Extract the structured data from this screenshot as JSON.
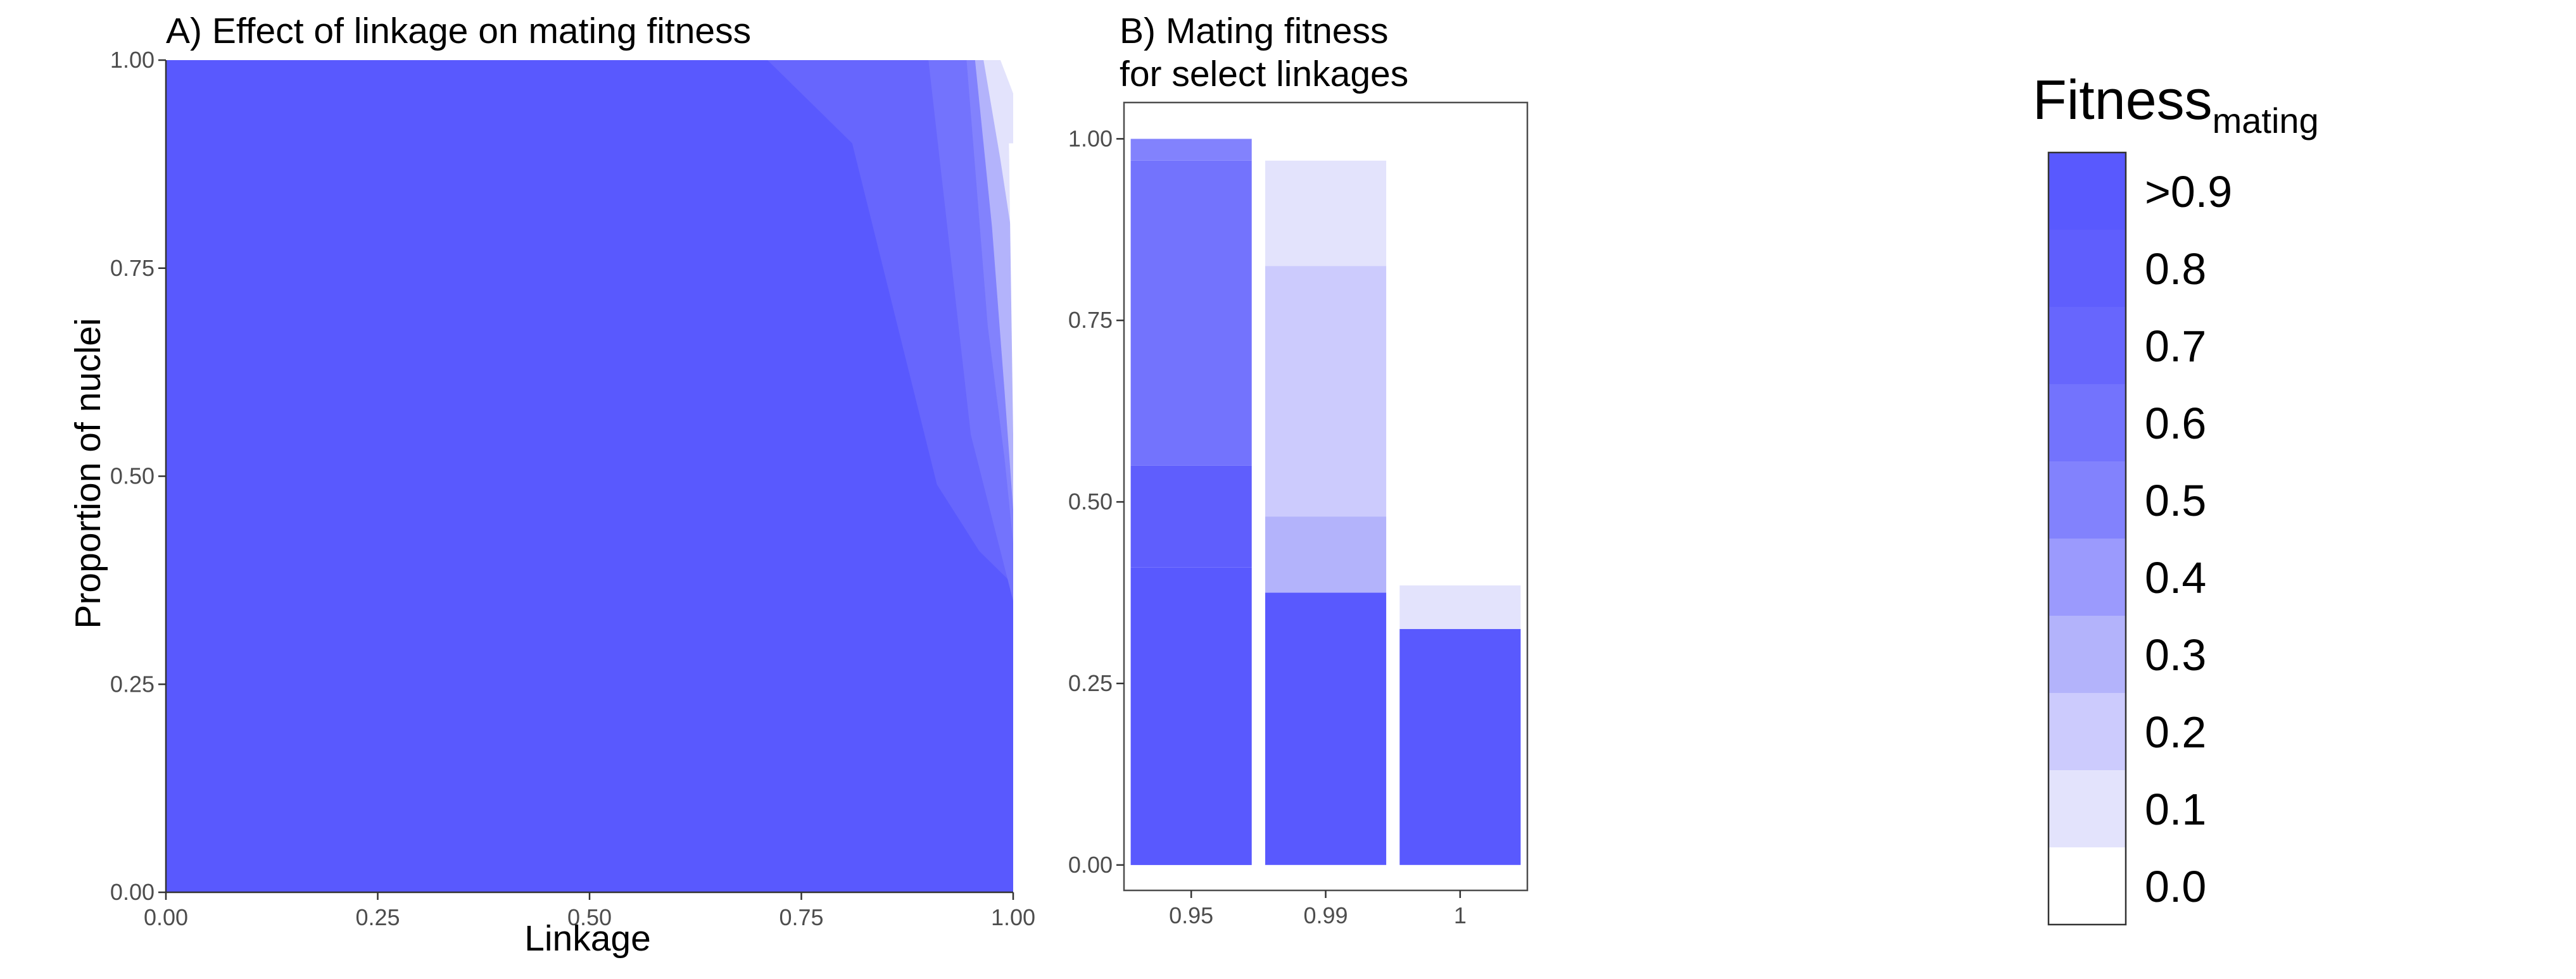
{
  "colors": {
    "palette": [
      "#ffffff",
      "#e3e3fc",
      "#cccbfd",
      "#b3b3fb",
      "#9b9afd",
      "#8282fd",
      "#7373fd",
      "#6766fd",
      "#5f5efd",
      "#5959fe"
    ],
    "axis": "#333333",
    "frame": "#4d4d4d"
  },
  "chart_data": [
    {
      "type": "area",
      "title": "A) Effect of linkage on mating fitness",
      "xlabel": "Linkage",
      "ylabel": "Proportion of nuclei",
      "xlim": [
        0,
        1
      ],
      "ylim": [
        0,
        1
      ],
      "xticks": [
        "0.00",
        "0.25",
        "0.50",
        "0.75",
        "1.00"
      ],
      "yticks": [
        "0.00",
        "0.25",
        "0.50",
        "0.75",
        "1.00"
      ],
      "grid": false,
      "background_level": 9,
      "regions": [
        {
          "level": 7,
          "points": [
            [
              0.71,
              1.0
            ],
            [
              0.81,
              0.9
            ],
            [
              0.91,
              0.49
            ],
            [
              0.96,
              0.41
            ],
            [
              1.0,
              0.37
            ],
            [
              1.0,
              1.0
            ]
          ]
        },
        {
          "level": 6,
          "points": [
            [
              0.9,
              1.0
            ],
            [
              0.95,
              0.55
            ],
            [
              0.975,
              0.45
            ],
            [
              1.0,
              0.35
            ],
            [
              1.0,
              1.0
            ]
          ]
        },
        {
          "level": 5,
          "points": [
            [
              0.945,
              1.0
            ],
            [
              0.97,
              0.68
            ],
            [
              0.99,
              0.52
            ],
            [
              1.0,
              0.42
            ],
            [
              1.0,
              1.0
            ]
          ]
        },
        {
          "level": 3,
          "points": [
            [
              0.955,
              1.0
            ],
            [
              0.975,
              0.8
            ],
            [
              0.99,
              0.6
            ],
            [
              1.0,
              0.46
            ],
            [
              1.0,
              1.0
            ]
          ]
        },
        {
          "level": 1,
          "points": [
            [
              0.965,
              1.0
            ],
            [
              0.985,
              0.88
            ],
            [
              1.0,
              0.78
            ],
            [
              1.0,
              1.0
            ]
          ]
        },
        {
          "level": 0,
          "points": [
            [
              0.985,
              1.0
            ],
            [
              1.0,
              0.96
            ],
            [
              1.0,
              1.0
            ]
          ]
        },
        {
          "level": 0,
          "points": [
            [
              0.995,
              0.9
            ],
            [
              1.0,
              0.55
            ],
            [
              1.0,
              0.9
            ]
          ]
        }
      ]
    },
    {
      "type": "bar",
      "title": "B) Mating fitness for select linkages",
      "title_lines": [
        "B) Mating fitness",
        "for select linkages"
      ],
      "categories": [
        "0.95",
        "0.99",
        "1"
      ],
      "ylim": [
        -0.035,
        1.05
      ],
      "yticks": [
        "0.00",
        "0.25",
        "0.50",
        "0.75",
        "1.00"
      ],
      "grid": false,
      "stacks": [
        [
          {
            "from": 0.0,
            "to": 0.41,
            "level": 9
          },
          {
            "from": 0.41,
            "to": 0.55,
            "level": 8
          },
          {
            "from": 0.55,
            "to": 0.97,
            "level": 6
          },
          {
            "from": 0.97,
            "to": 1.0,
            "level": 5
          }
        ],
        [
          {
            "from": 0.0,
            "to": 0.375,
            "level": 9
          },
          {
            "from": 0.375,
            "to": 0.48,
            "level": 3
          },
          {
            "from": 0.48,
            "to": 0.825,
            "level": 2
          },
          {
            "from": 0.825,
            "to": 0.97,
            "level": 1
          }
        ],
        [
          {
            "from": 0.0,
            "to": 0.325,
            "level": 9
          },
          {
            "from": 0.325,
            "to": 0.385,
            "level": 1
          }
        ]
      ]
    }
  ],
  "legend": {
    "title_main": "Fitness",
    "title_sub": "mating",
    "placement": "right",
    "entries": [
      ">0.9",
      "0.8",
      "0.7",
      "0.6",
      "0.5",
      "0.4",
      "0.3",
      "0.2",
      "0.1",
      "0.0"
    ]
  }
}
